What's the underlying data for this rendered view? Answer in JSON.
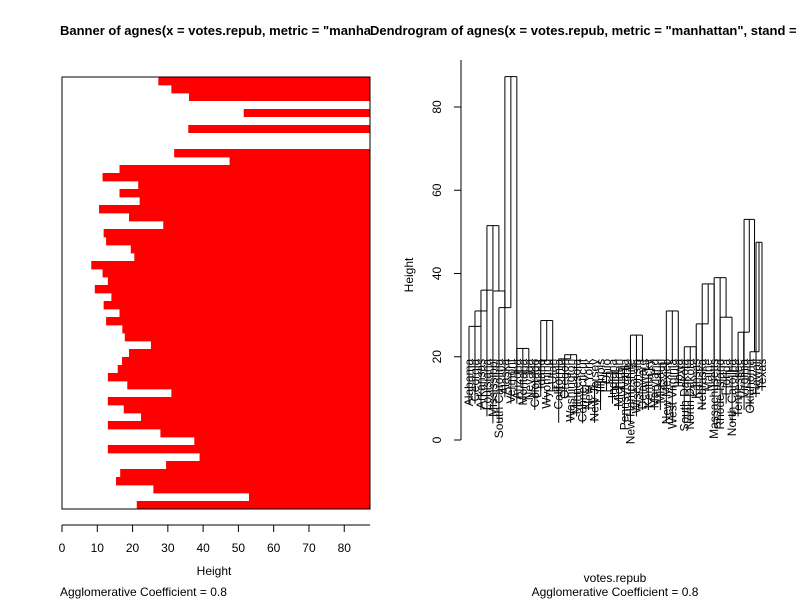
{
  "colors": {
    "bar": "#ff0000",
    "axis": "#000000",
    "background": "#ffffff"
  },
  "chart_data": [
    {
      "type": "bar",
      "orientation": "horizontal",
      "title": "Banner of  agnes(x = votes.repub, metric = \"manhattan\", stand = TRUE)",
      "xlabel": "Height",
      "footer": "Agglomerative Coefficient =  0.8",
      "xlim": [
        0,
        87.3
      ],
      "xticks": [
        0,
        10,
        20,
        30,
        40,
        50,
        60,
        70,
        80
      ],
      "grid": false,
      "values": [
        27.3,
        31.0,
        36.0,
        0,
        51.5,
        0,
        35.8,
        0,
        0,
        31.8,
        47.5,
        16.3,
        11.5,
        21.6,
        16.3,
        22.0,
        10.5,
        19.0,
        28.7,
        11.8,
        12.5,
        19.5,
        20.5,
        8.3,
        11.5,
        13.0,
        9.3,
        14.0,
        11.8,
        16.3,
        12.5,
        17.1,
        17.8,
        25.2,
        19.0,
        17.0,
        15.8,
        13.0,
        18.5,
        31.0,
        13.0,
        17.5,
        22.4,
        13.0,
        27.9,
        37.5,
        13.0,
        39.0,
        29.5,
        16.5,
        15.3,
        25.9,
        53.0,
        21.2
      ]
    },
    {
      "type": "dendrogram",
      "title": "Dendrogram of  agnes(x = votes.repub, metric = \"manhattan\", stand = TRUE)",
      "xlabel": "votes.repub",
      "ylabel": "Height",
      "footer": "Agglomerative Coefficient =  0.8",
      "ylim": [
        0,
        88
      ],
      "yticks": [
        0,
        20,
        40,
        60,
        80
      ],
      "leaves": [
        "Alabama",
        "Georgia",
        "Arkansas",
        "Louisiana",
        "Mississippi",
        "South Carolina",
        "Alaska",
        "Vermont",
        "Arizona",
        "Montana",
        "Nevada",
        "Colorado",
        "Idaho",
        "Wyoming",
        "Utah",
        "California",
        "Oregon",
        "Washington",
        "Minnesota",
        "Connecticut",
        "New York",
        "New Jersey",
        "Illinois",
        "Ohio",
        "Indiana",
        "Michigan",
        "Pennsylvania",
        "New Hampshire",
        "Wisconsin",
        "Delaware",
        "Kentucky",
        "Maryland",
        "Missouri",
        "New Mexico",
        "West Virginia",
        "Iowa",
        "South Dakota",
        "North Dakota",
        "Kansas",
        "Nebraska",
        "Maine",
        "Massachusetts",
        "Rhode Island",
        "Florida",
        "North Carolina",
        "Tennessee",
        "Virginia",
        "Oklahoma",
        "Hawaii",
        "Texas"
      ],
      "heights": [
        27.3,
        31.0,
        36.0,
        51.5,
        35.8,
        31.8,
        87.3,
        16.3,
        22.0,
        16.3,
        10.5,
        19.0,
        28.7,
        11.8,
        12.5,
        19.5,
        20.5,
        8.3,
        11.5,
        13.0,
        9.3,
        14.0,
        11.8,
        16.3,
        12.5,
        17.1,
        17.8,
        25.2,
        19.0,
        17.0,
        15.8,
        13.0,
        18.5,
        31.0,
        13.0,
        17.5,
        22.4,
        13.0,
        27.9,
        37.5,
        13.0,
        39.0,
        29.5,
        16.5,
        15.3,
        25.9,
        53.0,
        21.2,
        47.5
      ]
    }
  ]
}
